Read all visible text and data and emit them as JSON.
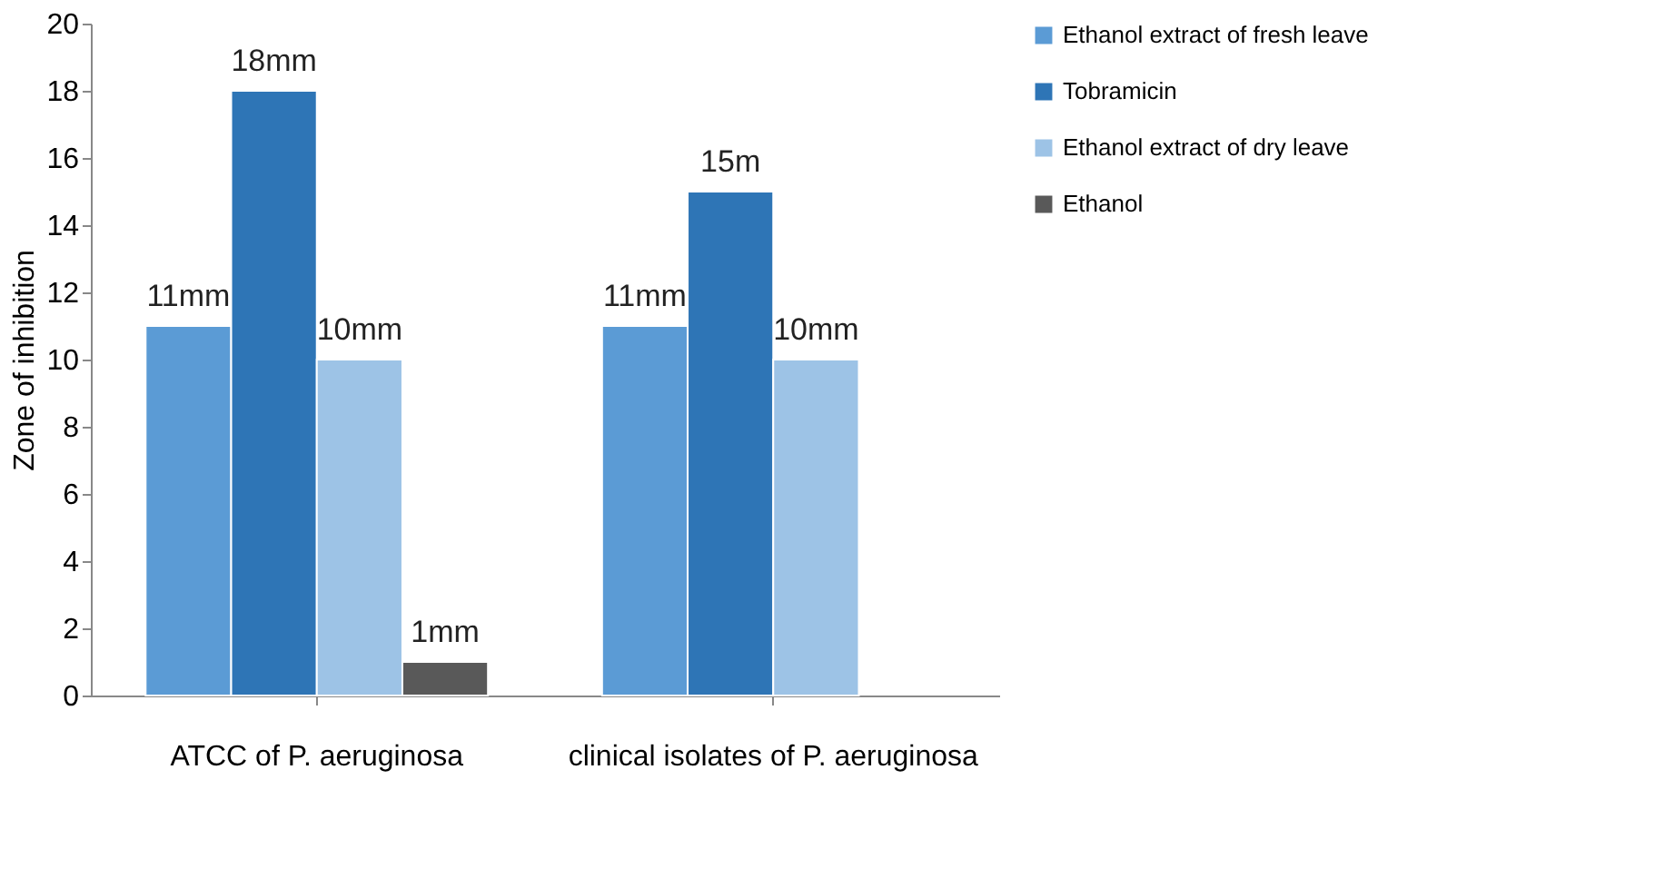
{
  "chart_data": {
    "type": "bar",
    "ylabel": "Zone of inhibition",
    "categories": [
      "ATCC of P. aeruginosa",
      "clinical isolates of P. aeruginosa"
    ],
    "series": [
      {
        "name": "Ethanol extract of fresh leave",
        "color": "#5b9bd5",
        "values": [
          11,
          11
        ],
        "value_labels": [
          "11mm",
          "11mm"
        ]
      },
      {
        "name": "Tobramicin",
        "color": "#2e75b6",
        "values": [
          18,
          15
        ],
        "value_labels": [
          "18mm",
          "15m"
        ]
      },
      {
        "name": "Ethanol extract of dry leave",
        "color": "#9dc3e6",
        "values": [
          10,
          10
        ],
        "value_labels": [
          "10mm",
          "10mm"
        ]
      },
      {
        "name": "Ethanol",
        "color": "#595959",
        "values": [
          1,
          null
        ],
        "value_labels": [
          "1mm",
          null
        ]
      }
    ],
    "ylim": [
      0,
      20
    ],
    "yticks": [
      0,
      2,
      4,
      6,
      8,
      10,
      12,
      14,
      16,
      18,
      20
    ],
    "grid": false,
    "legend": "right"
  }
}
